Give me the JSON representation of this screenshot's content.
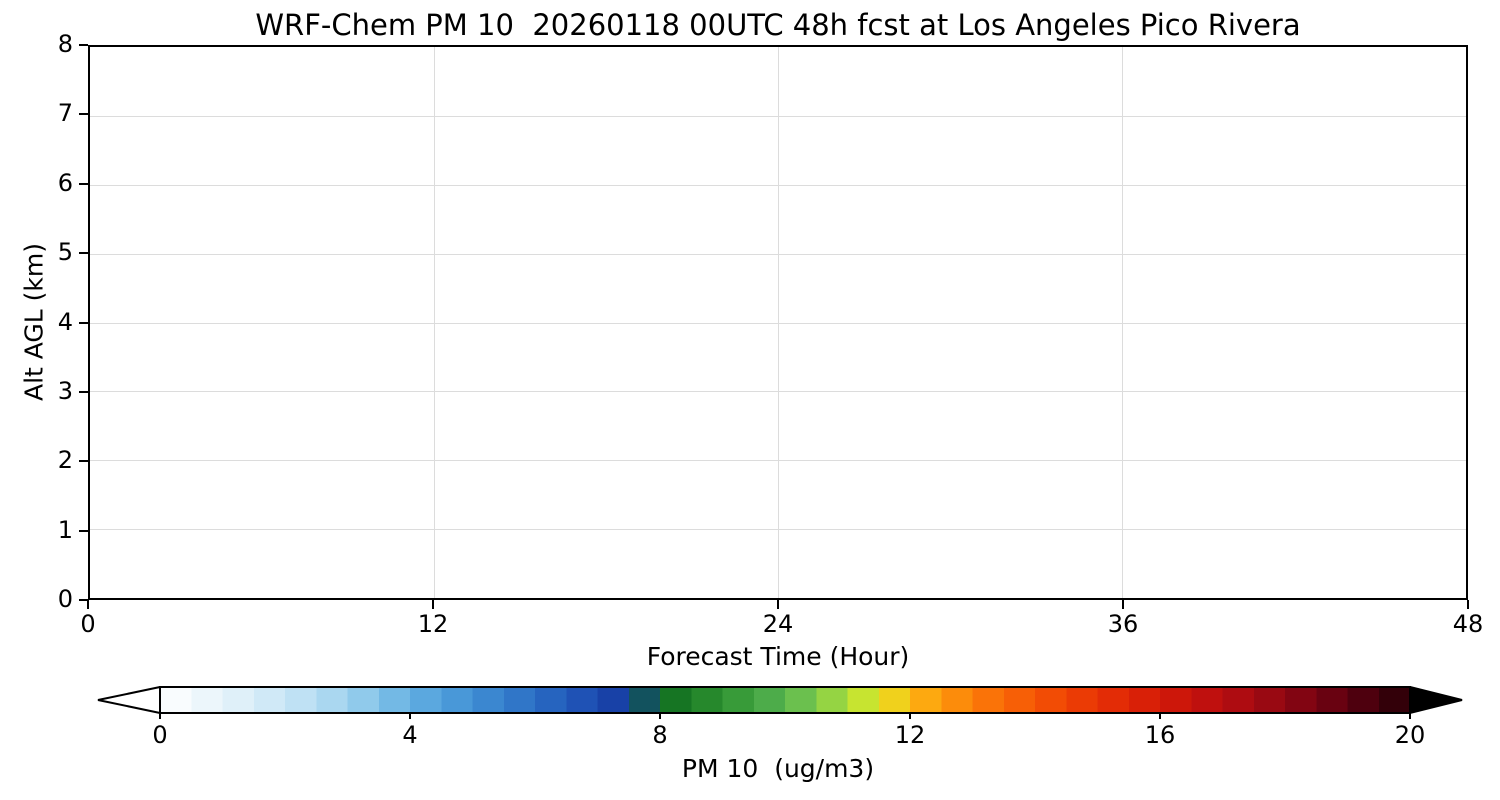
{
  "title": "WRF-Chem PM 10  20260118 00UTC 48h fcst at Los Angeles Pico Rivera",
  "chart_data": {
    "type": "heatmap",
    "title": "WRF-Chem PM 10  20260118 00UTC 48h fcst at Los Angeles Pico Rivera",
    "xlabel": "Forecast Time (Hour)",
    "ylabel": "Alt AGL (km)",
    "xlim": [
      0,
      48
    ],
    "ylim": [
      0,
      8
    ],
    "x_ticks": [
      0,
      12,
      24,
      36,
      48
    ],
    "y_ticks": [
      0,
      1,
      2,
      3,
      4,
      5,
      6,
      7,
      8
    ],
    "grid": true,
    "field": {
      "description": "PM10 vertical cross-section vs forecast hour; entire 0-48h / 0-8km domain is at or below the lowest contour level, so the plot area renders blank white",
      "uniform_value": 0
    },
    "colorbar": {
      "label": "PM 10  (ug/m3)",
      "ticks": [
        0,
        4,
        8,
        12,
        16,
        20
      ],
      "range": [
        0,
        20
      ],
      "segments": 40,
      "under_color": "#ffffff",
      "over_color": "#000000",
      "stops": [
        {
          "v": 0,
          "c": "#ffffff"
        },
        {
          "v": 1,
          "c": "#e6f3fa"
        },
        {
          "v": 2,
          "c": "#c9e6f6"
        },
        {
          "v": 3,
          "c": "#9fd2ee"
        },
        {
          "v": 4,
          "c": "#64b0e2"
        },
        {
          "v": 5,
          "c": "#4090d4"
        },
        {
          "v": 6,
          "c": "#2a6dc4"
        },
        {
          "v": 7,
          "c": "#1b49b0"
        },
        {
          "v": 7.5,
          "c": "#15389e"
        },
        {
          "v": 8,
          "c": "#0e6b1e"
        },
        {
          "v": 9,
          "c": "#2e9230"
        },
        {
          "v": 10,
          "c": "#57b552"
        },
        {
          "v": 10.5,
          "c": "#7ecb49"
        },
        {
          "v": 11,
          "c": "#abdd3c"
        },
        {
          "v": 11.5,
          "c": "#e2ea24"
        },
        {
          "v": 12,
          "c": "#fdb813"
        },
        {
          "v": 12.5,
          "c": "#fd9a0d"
        },
        {
          "v": 13,
          "c": "#fb7d09"
        },
        {
          "v": 14,
          "c": "#f55505"
        },
        {
          "v": 15,
          "c": "#e83205"
        },
        {
          "v": 16,
          "c": "#d41a08"
        },
        {
          "v": 17,
          "c": "#b80d10"
        },
        {
          "v": 18,
          "c": "#8f0712"
        },
        {
          "v": 19,
          "c": "#5c0010"
        },
        {
          "v": 20,
          "c": "#250006"
        }
      ]
    }
  },
  "colors": {
    "axis": "#000000",
    "grid": "#dcdcdc",
    "plot_background": "#ffffff",
    "page_background": "#ffffff"
  }
}
